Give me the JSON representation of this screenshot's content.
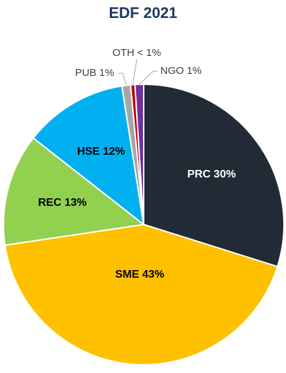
{
  "chart_data": {
    "type": "pie",
    "title": "EDF 2021",
    "categories": [
      "PRC",
      "SME",
      "REC",
      "HSE",
      "PUB",
      "OTH",
      "NGO"
    ],
    "values": [
      30,
      43,
      13,
      12,
      1,
      0.5,
      1
    ],
    "value_labels": [
      "30%",
      "43%",
      "13%",
      "12%",
      "1%",
      "< 1%",
      "1%"
    ],
    "colors": [
      "#222a35",
      "#ffc000",
      "#92d050",
      "#00b0f0",
      "#a6a6a6",
      "#c00000",
      "#7030a0"
    ]
  }
}
